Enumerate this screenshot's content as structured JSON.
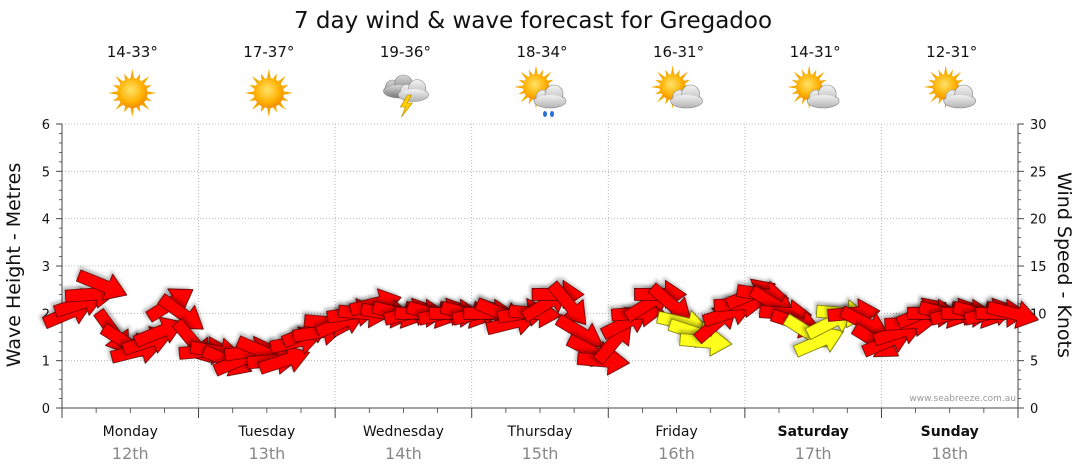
{
  "chart_data": {
    "type": "line",
    "title": "7 day wind & wave forecast for Gregadoo",
    "ylabel_left": "Wave Height - Metres",
    "ylabel_right": "Wind Speed - Knots",
    "ylim_left": [
      0,
      6
    ],
    "ylim_right": [
      0,
      30
    ],
    "yticks_left": [
      "0",
      "1",
      "2",
      "3",
      "4",
      "5",
      "6"
    ],
    "yticks_right": [
      "0",
      "5",
      "10",
      "15",
      "20",
      "25",
      "30"
    ],
    "grid": true,
    "days": [
      {
        "name": "Monday",
        "date": "12th",
        "temp": "14-33°",
        "icon": "sunny-icon",
        "weekend": false
      },
      {
        "name": "Tuesday",
        "date": "13th",
        "temp": "17-37°",
        "icon": "sunny-icon",
        "weekend": false
      },
      {
        "name": "Wednesday",
        "date": "14th",
        "temp": "19-36°",
        "icon": "thunderstorm-icon",
        "weekend": false
      },
      {
        "name": "Thursday",
        "date": "15th",
        "temp": "18-34°",
        "icon": "sun-cloud-rain-icon",
        "weekend": false
      },
      {
        "name": "Friday",
        "date": "16th",
        "temp": "16-31°",
        "icon": "partly-cloudy-icon",
        "weekend": false
      },
      {
        "name": "Saturday",
        "date": "17th",
        "temp": "14-31°",
        "icon": "partly-cloudy-icon",
        "weekend": true
      },
      {
        "name": "Sunday",
        "date": "18th",
        "temp": "12-31°",
        "icon": "partly-cloudy-icon",
        "weekend": true
      }
    ],
    "series": [
      {
        "name": "Wind Speed",
        "axis": "right",
        "unit": "knots",
        "values": [
          10,
          11,
          12,
          13,
          8,
          7,
          6,
          7,
          8,
          11,
          10,
          7,
          6,
          6,
          5,
          5,
          6,
          6,
          5,
          5,
          7,
          8,
          8,
          9,
          9,
          10,
          10,
          11,
          10,
          10,
          10,
          10,
          10,
          10,
          10,
          10,
          10,
          10,
          10,
          9,
          10,
          10,
          11,
          12,
          11,
          8,
          6,
          5,
          7,
          9,
          10,
          11,
          12,
          11,
          9,
          8,
          7,
          9,
          10,
          11,
          12,
          12,
          11,
          10,
          9,
          8,
          7,
          9,
          10,
          10,
          9,
          7,
          7,
          8,
          9,
          10,
          10,
          10,
          10,
          10,
          10,
          10,
          10,
          10
        ],
        "highlight_indices": [
          54,
          55,
          56,
          65,
          66,
          67,
          68
        ]
      }
    ],
    "colors": {
      "arrow": "#ff0000",
      "arrow_highlight": "#ffff1a",
      "grid": "#aaaaaa"
    }
  },
  "credit": "www.seabreeze.com.au"
}
